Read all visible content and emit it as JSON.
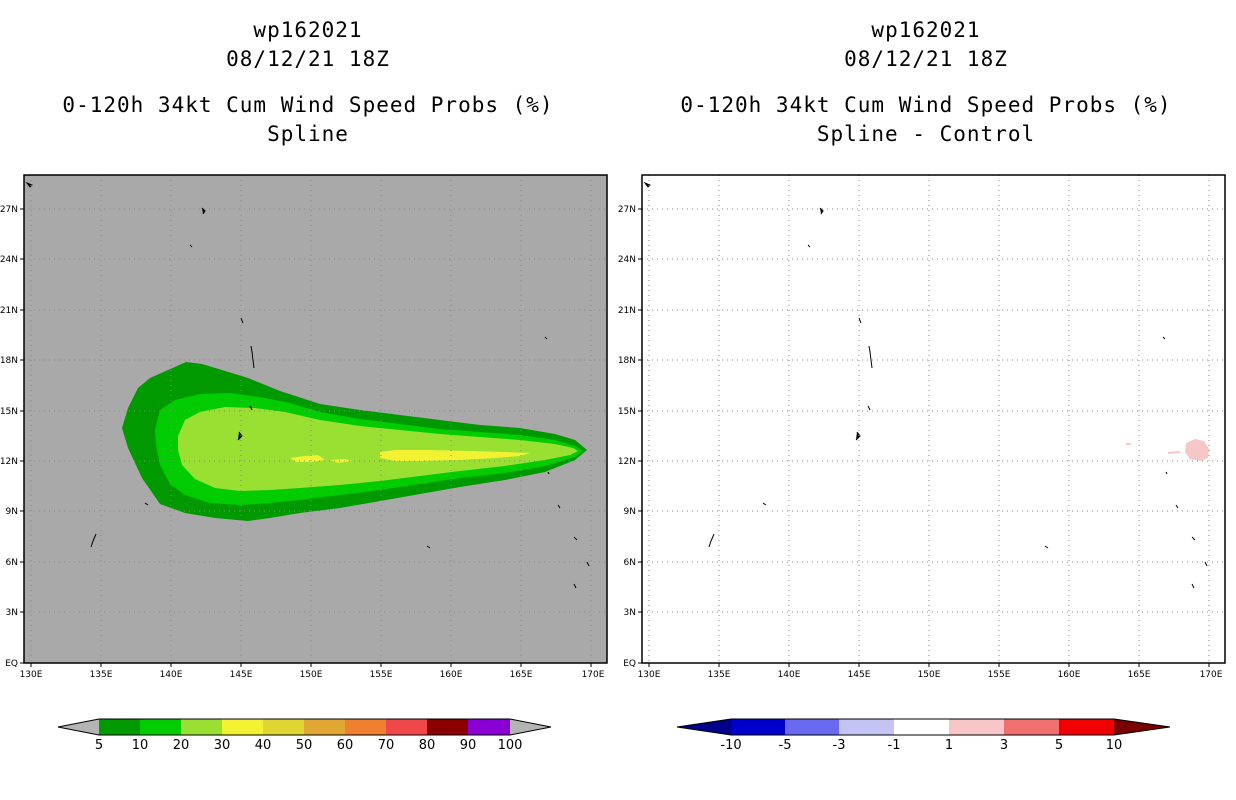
{
  "colors": {
    "land_mask": "#a9a9a9",
    "grid": "#888888",
    "prob_5": "#009900",
    "prob_10": "#00cc00",
    "prob_20": "#99e033",
    "prob_30": "#f2f233",
    "diff_pos_1": "#f7c6c6"
  },
  "left_panel": {
    "title_line1": "wp162021",
    "title_line2": "08/12/21 18Z",
    "title_line3": "0-120h 34kt Cum Wind Speed Probs (%)",
    "title_line4": "Spline"
  },
  "right_panel": {
    "title_line1": "wp162021",
    "title_line2": "08/12/21 18Z",
    "title_line3": "0-120h 34kt Cum Wind Speed Probs (%)",
    "title_line4": "Spline - Control"
  },
  "map_axes": {
    "lon_range_deg_e": [
      129.5,
      170.5
    ],
    "lat_range_deg_n": [
      0,
      29
    ],
    "x_ticks": [
      "130E",
      "135E",
      "140E",
      "145E",
      "150E",
      "155E",
      "160E",
      "165E",
      "170E"
    ],
    "y_ticks": [
      "EQ",
      "3N",
      "6N",
      "9N",
      "12N",
      "15N",
      "18N",
      "21N",
      "24N",
      "27N"
    ]
  },
  "colorbar_left": {
    "labels": [
      "5",
      "10",
      "20",
      "30",
      "40",
      "50",
      "60",
      "70",
      "80",
      "90",
      "100"
    ],
    "colors": [
      "#009900",
      "#00cc00",
      "#99e033",
      "#f2f233",
      "#e0d633",
      "#e0a833",
      "#ee8030",
      "#f04848",
      "#8b0000",
      "#8a00d4"
    ],
    "end_color": "#b4b4b4"
  },
  "colorbar_right": {
    "labels": [
      "-10",
      "-5",
      "-3",
      "-1",
      "1",
      "3",
      "5",
      "10"
    ],
    "colors": [
      "#0000cc",
      "#6a6af0",
      "#c4c4f4",
      "#ffffff",
      "#f7c6c6",
      "#f07070",
      "#f00000"
    ],
    "low_end_color": "#00008b",
    "high_end_color": "#7a0000"
  }
}
